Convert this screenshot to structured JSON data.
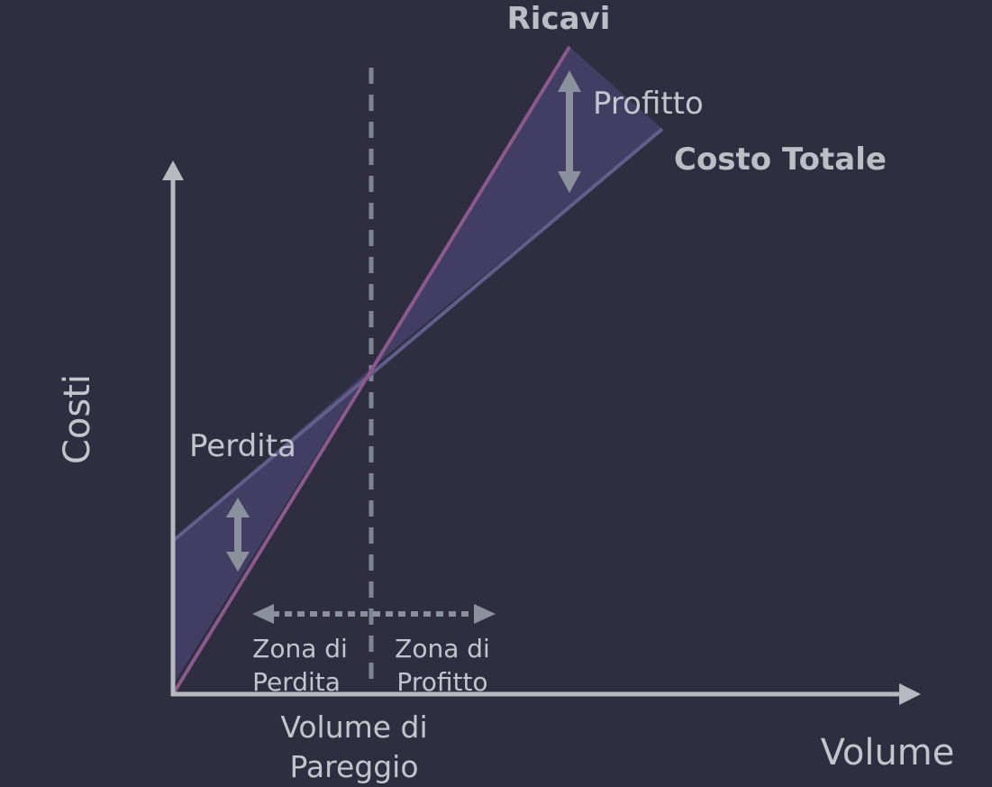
{
  "labels": {
    "revenue": "Ricavi",
    "total_cost": "Costo Totale",
    "profit": "Profitto",
    "loss": "Perdita",
    "y_axis": "Costi",
    "x_axis": "Volume",
    "loss_zone_line1": "Zona di",
    "loss_zone_line2": "Perdita",
    "profit_zone_line1": "Zona di",
    "profit_zone_line2": "Profitto",
    "breakeven_line1": "Volume di",
    "breakeven_line2": "Pareggio"
  },
  "colors": {
    "background": "#2f2e40",
    "axis": "#b8b8c0",
    "revenue_line": "#8a5a8c",
    "cost_line": "#605e8a",
    "area_fill": "#423d63",
    "arrow": "#8a919c",
    "text": "#c4c4cc"
  }
}
